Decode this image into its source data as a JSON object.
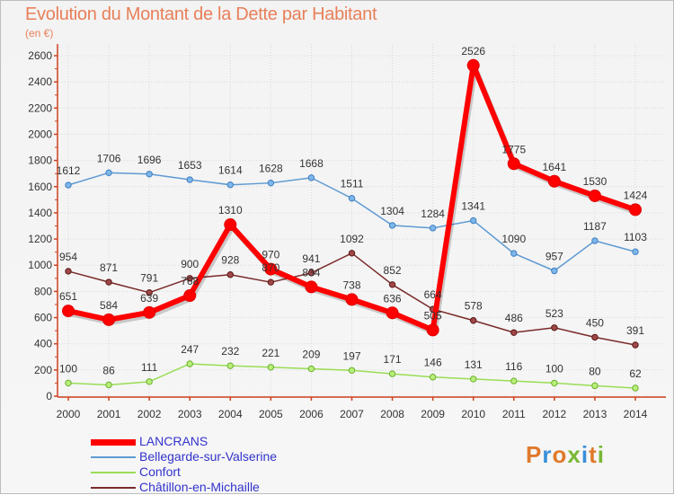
{
  "chart_data": {
    "type": "line",
    "title": "Evolution du Montant de la Dette par Habitant",
    "subtitle": "(en €)",
    "ylim": [
      0,
      2600
    ],
    "yticks": [
      0,
      200,
      400,
      600,
      800,
      1000,
      1200,
      1400,
      1600,
      1800,
      2000,
      2200,
      2400,
      2600
    ],
    "grid": true,
    "legend_position": "bottom-left",
    "x": [
      "2000",
      "2001",
      "2002",
      "2003",
      "2004",
      "2005",
      "2006",
      "2007",
      "2008",
      "2009",
      "2010",
      "2011",
      "2012",
      "2013",
      "2014"
    ],
    "series": [
      {
        "name": "LANCRANS",
        "color": "#ff0000",
        "values": [
          651,
          584,
          639,
          768,
          1310,
          970,
          834,
          738,
          636,
          505,
          2526,
          1775,
          1641,
          1530,
          1424
        ]
      },
      {
        "name": "Bellegarde-sur-Valserine",
        "color": "#5e9ad2",
        "values": [
          1612,
          1706,
          1696,
          1653,
          1614,
          1628,
          1668,
          1511,
          1304,
          1284,
          1341,
          1090,
          957,
          1187,
          1103
        ]
      },
      {
        "name": "Confort",
        "color": "#99dd55",
        "values": [
          100,
          86,
          111,
          247,
          232,
          221,
          209,
          197,
          171,
          146,
          131,
          116,
          100,
          80,
          62
        ]
      },
      {
        "name": "Châtillon-en-Michaille",
        "color": "#7a2a2a",
        "values": [
          954,
          871,
          791,
          900,
          928,
          870,
          941,
          1092,
          852,
          664,
          578,
          486,
          523,
          450,
          391
        ]
      }
    ]
  },
  "logo": {
    "text": "Proxiti",
    "letter_colors": [
      "#e07a2c",
      "#3a8fd8",
      "#e07a2c",
      "#79b834",
      "#3a8fd8",
      "#e07a2c",
      "#79b834"
    ]
  }
}
